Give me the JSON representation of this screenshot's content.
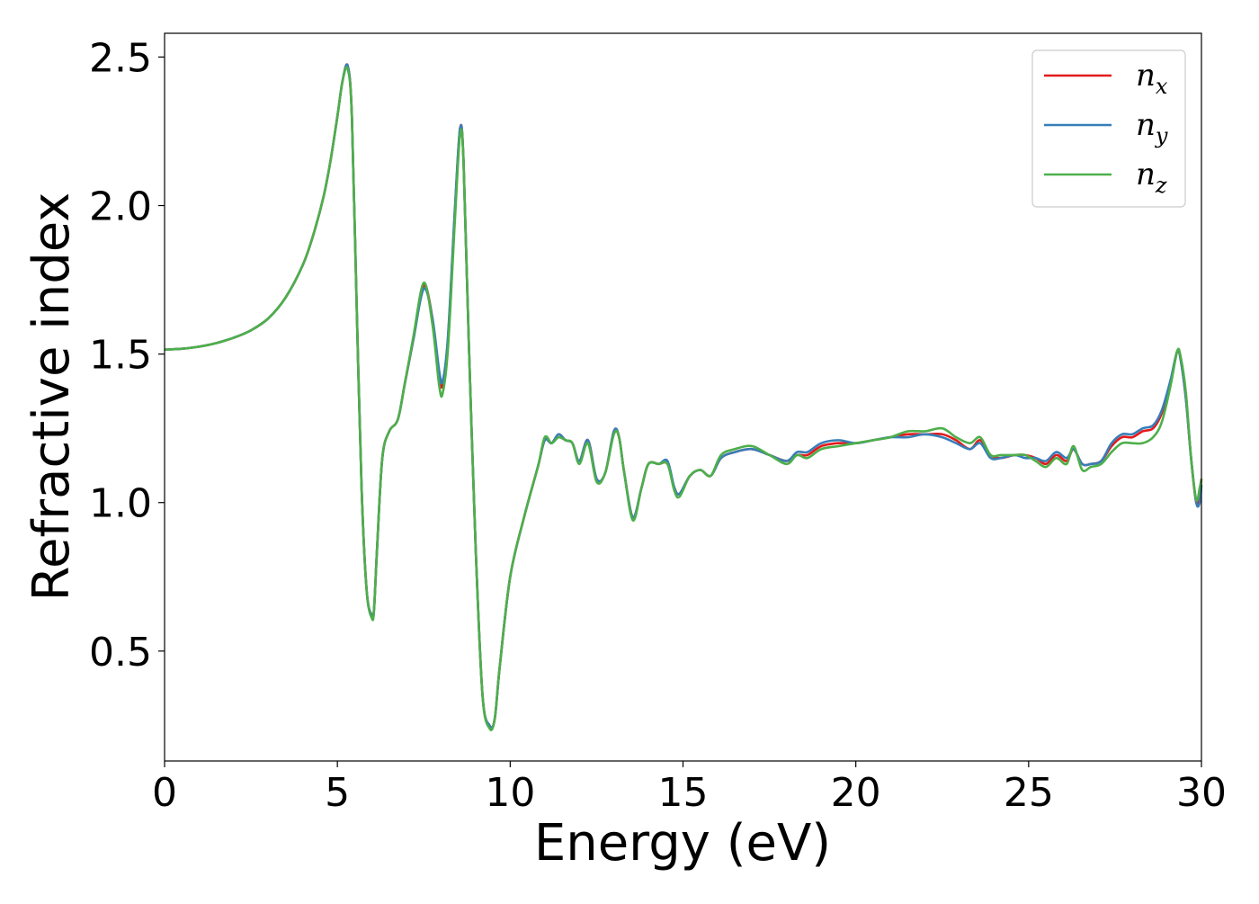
{
  "chart_data": {
    "type": "line",
    "title": "",
    "xlabel": "Energy (eV)",
    "ylabel": "Refractive index",
    "xlim": [
      0,
      30
    ],
    "ylim": [
      0.13,
      2.58
    ],
    "x_ticks": [
      0,
      5,
      10,
      15,
      20,
      25,
      30
    ],
    "y_ticks": [
      0.5,
      1.0,
      1.5,
      2.0,
      2.5
    ],
    "x_tick_labels": [
      "0",
      "5",
      "10",
      "15",
      "20",
      "25",
      "30"
    ],
    "y_tick_labels": [
      "0.5",
      "1.0",
      "1.5",
      "2.0",
      "2.5"
    ],
    "grid": false,
    "legend_position": "top-right",
    "series": [
      {
        "name": "nx",
        "label_base": "n",
        "label_sub": "x",
        "color": "#e41a1c",
        "x": [
          0,
          0.5,
          1,
          1.5,
          2,
          2.5,
          3,
          3.5,
          4,
          4.3,
          4.6,
          4.8,
          5.0,
          5.15,
          5.3,
          5.42,
          5.55,
          5.7,
          5.85,
          6.0,
          6.06,
          6.15,
          6.3,
          6.5,
          6.75,
          6.95,
          7.2,
          7.5,
          7.75,
          7.95,
          8.05,
          8.2,
          8.4,
          8.55,
          8.65,
          8.8,
          9.0,
          9.2,
          9.4,
          9.55,
          9.7,
          10.0,
          10.4,
          10.8,
          11.0,
          11.2,
          11.4,
          11.6,
          11.8,
          12.0,
          12.25,
          12.5,
          12.75,
          13.0,
          13.15,
          13.3,
          13.55,
          13.8,
          14.0,
          14.3,
          14.55,
          14.75,
          14.9,
          15.2,
          15.5,
          15.8,
          16.1,
          16.5,
          17.0,
          17.5,
          18.0,
          18.3,
          18.6,
          19.0,
          19.5,
          20.0,
          20.5,
          21.0,
          21.5,
          22.0,
          22.5,
          22.9,
          23.3,
          23.6,
          23.9,
          24.2,
          24.6,
          24.9,
          25.2,
          25.5,
          25.8,
          26.1,
          26.3,
          26.55,
          26.8,
          27.1,
          27.4,
          27.7,
          28.0,
          28.3,
          28.6,
          28.85,
          29.1,
          29.3,
          29.4,
          29.55,
          29.7,
          29.85,
          29.95,
          30.0
        ],
        "values": [
          1.515,
          1.518,
          1.525,
          1.537,
          1.555,
          1.58,
          1.62,
          1.69,
          1.8,
          1.9,
          2.03,
          2.15,
          2.3,
          2.42,
          2.47,
          2.3,
          1.7,
          1.05,
          0.7,
          0.62,
          0.64,
          0.85,
          1.15,
          1.24,
          1.28,
          1.4,
          1.55,
          1.73,
          1.62,
          1.42,
          1.4,
          1.55,
          1.98,
          2.26,
          2.15,
          1.55,
          0.85,
          0.35,
          0.25,
          0.27,
          0.45,
          0.75,
          0.95,
          1.12,
          1.21,
          1.2,
          1.23,
          1.21,
          1.2,
          1.14,
          1.21,
          1.08,
          1.1,
          1.24,
          1.22,
          1.1,
          0.95,
          1.05,
          1.13,
          1.13,
          1.13,
          1.05,
          1.03,
          1.09,
          1.11,
          1.09,
          1.15,
          1.17,
          1.18,
          1.16,
          1.14,
          1.16,
          1.16,
          1.19,
          1.2,
          1.2,
          1.21,
          1.22,
          1.23,
          1.23,
          1.23,
          1.21,
          1.18,
          1.21,
          1.16,
          1.15,
          1.16,
          1.16,
          1.15,
          1.13,
          1.16,
          1.14,
          1.18,
          1.13,
          1.13,
          1.14,
          1.19,
          1.22,
          1.22,
          1.24,
          1.25,
          1.3,
          1.4,
          1.51,
          1.48,
          1.35,
          1.15,
          1.0,
          1.04,
          1.08
        ]
      },
      {
        "name": "ny",
        "label_base": "n",
        "label_sub": "y",
        "color": "#377eb8",
        "x": [
          0,
          0.5,
          1,
          1.5,
          2,
          2.5,
          3,
          3.5,
          4,
          4.3,
          4.6,
          4.8,
          5.0,
          5.15,
          5.3,
          5.42,
          5.55,
          5.7,
          5.85,
          6.0,
          6.06,
          6.15,
          6.3,
          6.5,
          6.75,
          6.95,
          7.2,
          7.5,
          7.75,
          7.95,
          8.05,
          8.2,
          8.4,
          8.55,
          8.65,
          8.8,
          9.0,
          9.2,
          9.4,
          9.55,
          9.7,
          10.0,
          10.4,
          10.8,
          11.0,
          11.2,
          11.4,
          11.6,
          11.8,
          12.0,
          12.25,
          12.5,
          12.75,
          13.0,
          13.15,
          13.3,
          13.55,
          13.8,
          14.0,
          14.3,
          14.55,
          14.75,
          14.9,
          15.2,
          15.5,
          15.8,
          16.1,
          16.5,
          17.0,
          17.5,
          18.0,
          18.3,
          18.6,
          19.0,
          19.5,
          20.0,
          20.5,
          21.0,
          21.5,
          22.0,
          22.5,
          22.9,
          23.3,
          23.6,
          23.9,
          24.2,
          24.6,
          24.9,
          25.2,
          25.5,
          25.8,
          26.1,
          26.3,
          26.55,
          26.8,
          27.1,
          27.4,
          27.7,
          28.0,
          28.3,
          28.6,
          28.85,
          29.1,
          29.3,
          29.4,
          29.55,
          29.7,
          29.85,
          29.95,
          30.0
        ],
        "values": [
          1.515,
          1.518,
          1.525,
          1.537,
          1.555,
          1.58,
          1.62,
          1.69,
          1.8,
          1.9,
          2.03,
          2.15,
          2.3,
          2.42,
          2.47,
          2.3,
          1.7,
          1.05,
          0.7,
          0.62,
          0.64,
          0.85,
          1.15,
          1.24,
          1.28,
          1.4,
          1.55,
          1.72,
          1.62,
          1.44,
          1.41,
          1.56,
          1.99,
          2.26,
          2.15,
          1.55,
          0.85,
          0.35,
          0.25,
          0.27,
          0.45,
          0.75,
          0.95,
          1.12,
          1.21,
          1.2,
          1.23,
          1.21,
          1.2,
          1.14,
          1.21,
          1.08,
          1.1,
          1.24,
          1.22,
          1.1,
          0.95,
          1.05,
          1.13,
          1.13,
          1.14,
          1.05,
          1.03,
          1.09,
          1.11,
          1.09,
          1.15,
          1.17,
          1.18,
          1.16,
          1.14,
          1.17,
          1.17,
          1.2,
          1.21,
          1.2,
          1.21,
          1.22,
          1.22,
          1.23,
          1.22,
          1.2,
          1.18,
          1.2,
          1.15,
          1.15,
          1.16,
          1.15,
          1.15,
          1.14,
          1.17,
          1.15,
          1.18,
          1.13,
          1.13,
          1.14,
          1.2,
          1.23,
          1.23,
          1.25,
          1.26,
          1.31,
          1.41,
          1.51,
          1.48,
          1.35,
          1.15,
          1.0,
          1.0,
          1.06
        ]
      },
      {
        "name": "nz",
        "label_base": "n",
        "label_sub": "z",
        "color": "#4daf4a",
        "x": [
          0,
          0.5,
          1,
          1.5,
          2,
          2.5,
          3,
          3.5,
          4,
          4.3,
          4.6,
          4.8,
          5.0,
          5.15,
          5.3,
          5.42,
          5.55,
          5.7,
          5.85,
          6.0,
          6.06,
          6.15,
          6.3,
          6.5,
          6.75,
          6.95,
          7.2,
          7.5,
          7.75,
          7.95,
          8.05,
          8.2,
          8.4,
          8.55,
          8.65,
          8.8,
          9.0,
          9.2,
          9.4,
          9.55,
          9.7,
          10.0,
          10.4,
          10.8,
          11.0,
          11.2,
          11.4,
          11.6,
          11.8,
          12.0,
          12.25,
          12.5,
          12.75,
          13.0,
          13.15,
          13.3,
          13.55,
          13.8,
          14.0,
          14.3,
          14.55,
          14.75,
          14.9,
          15.2,
          15.5,
          15.8,
          16.1,
          16.5,
          17.0,
          17.5,
          18.0,
          18.3,
          18.6,
          19.0,
          19.5,
          20.0,
          20.5,
          21.0,
          21.5,
          22.0,
          22.5,
          22.9,
          23.3,
          23.6,
          23.9,
          24.2,
          24.6,
          24.9,
          25.2,
          25.5,
          25.8,
          26.1,
          26.3,
          26.55,
          26.8,
          27.1,
          27.4,
          27.7,
          28.0,
          28.3,
          28.6,
          28.85,
          29.1,
          29.3,
          29.4,
          29.55,
          29.7,
          29.85,
          29.95,
          30.0
        ],
        "values": [
          1.515,
          1.518,
          1.525,
          1.537,
          1.555,
          1.58,
          1.62,
          1.69,
          1.8,
          1.9,
          2.03,
          2.15,
          2.3,
          2.42,
          2.46,
          2.3,
          1.7,
          1.05,
          0.7,
          0.61,
          0.64,
          0.85,
          1.15,
          1.24,
          1.28,
          1.4,
          1.56,
          1.74,
          1.6,
          1.39,
          1.37,
          1.52,
          1.95,
          2.24,
          2.15,
          1.55,
          0.85,
          0.35,
          0.24,
          0.27,
          0.45,
          0.75,
          0.95,
          1.12,
          1.22,
          1.2,
          1.22,
          1.21,
          1.2,
          1.13,
          1.2,
          1.07,
          1.1,
          1.23,
          1.22,
          1.1,
          0.94,
          1.05,
          1.13,
          1.13,
          1.13,
          1.04,
          1.02,
          1.09,
          1.11,
          1.09,
          1.16,
          1.18,
          1.19,
          1.16,
          1.13,
          1.16,
          1.15,
          1.18,
          1.19,
          1.2,
          1.21,
          1.22,
          1.24,
          1.24,
          1.25,
          1.22,
          1.2,
          1.22,
          1.16,
          1.16,
          1.16,
          1.16,
          1.14,
          1.12,
          1.15,
          1.13,
          1.19,
          1.11,
          1.12,
          1.13,
          1.17,
          1.2,
          1.2,
          1.2,
          1.22,
          1.27,
          1.39,
          1.51,
          1.49,
          1.37,
          1.15,
          1.01,
          1.05,
          1.08
        ]
      }
    ]
  }
}
